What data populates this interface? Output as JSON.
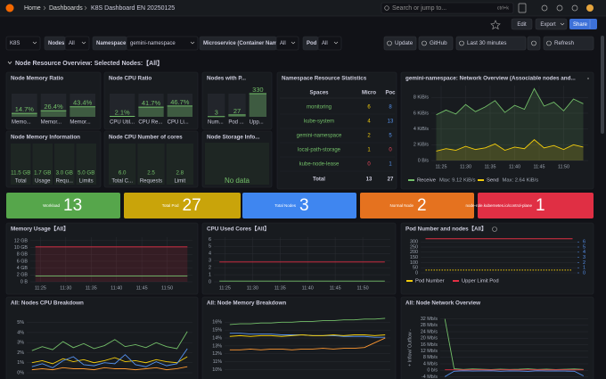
{
  "topbar": {
    "breadcrumb": [
      "Home",
      "Dashboards",
      "K8S Dashboard EN 20250125"
    ],
    "search": "Search or jump to...",
    "shortcut": "ctrl+k"
  },
  "toolbar": {
    "edit": "Edit",
    "export": "Export",
    "share": "Share"
  },
  "variables": {
    "datasource": "K8S",
    "nodes_label": "Nodes",
    "nodes": "All",
    "namespace_label": "Namespace",
    "namespace": "gemini-namespace",
    "microservice_label": "Microservice (Container Name)",
    "microservice": "All",
    "pod_label": "Pod",
    "pod": "All"
  },
  "actions": {
    "update": "Update",
    "github": "GitHub",
    "time_range": "Last 30 minutes",
    "refresh": "Refresh"
  },
  "row_title": "Node Resource Overview:  Selected Nodes:【All】",
  "panels": {
    "memory_ratio": {
      "title": "Node Memory Ratio",
      "max": 100,
      "items": [
        {
          "name": "Memo...",
          "value": 14.7,
          "label": "14.7%"
        },
        {
          "name": "Memor...",
          "value": 26.4,
          "label": "26.4%"
        },
        {
          "name": "Memor...",
          "value": 43.4,
          "label": "43.4%"
        }
      ]
    },
    "cpu_ratio": {
      "title": "Node CPU Ratio",
      "max": 100,
      "items": [
        {
          "name": "CPU Util...",
          "value": 2.1,
          "label": "2.1%"
        },
        {
          "name": "CPU Re...",
          "value": 41.7,
          "label": "41.7%"
        },
        {
          "name": "CPU Li...",
          "value": 46.7,
          "label": "46.7%"
        }
      ]
    },
    "pods": {
      "title": "Nodes with P...",
      "max": 330,
      "items": [
        {
          "name": "Num...",
          "value": 3
        },
        {
          "name": "Pod ...",
          "value": 27
        },
        {
          "name": "Upp...",
          "value": 330
        }
      ]
    },
    "memory_info": {
      "title": "Node Memory Information",
      "items": [
        {
          "name": "Total",
          "value": 11.5,
          "label": "11.5 GB"
        },
        {
          "name": "Usage",
          "value": 1.7,
          "label": "1.7 GB"
        },
        {
          "name": "Requ...",
          "value": 3.0,
          "label": "3.0 GB"
        },
        {
          "name": "Limits",
          "value": 5.0,
          "label": "5.0 GB"
        }
      ]
    },
    "cpu_cores": {
      "title": "Node CPU Number of cores",
      "items": [
        {
          "name": "Total C...",
          "value": 6.0,
          "label": "6.0"
        },
        {
          "name": "Requests",
          "value": 2.5,
          "label": "2.5"
        },
        {
          "name": "Limit",
          "value": 2.8,
          "label": "2.8"
        }
      ]
    },
    "storage": {
      "title": "Node Storage Info...",
      "message": "No data"
    },
    "namespace_table": {
      "title": "Namespace Resource Statistics",
      "columns": [
        "Spaces",
        "Micro",
        "Poc"
      ],
      "rows": [
        [
          "monitoring",
          6,
          8
        ],
        [
          "kube-system",
          4,
          13
        ],
        [
          "gemini-namespace",
          2,
          5
        ],
        [
          "local-path-storage",
          1,
          0
        ],
        [
          "kube-node-lease",
          0,
          1
        ]
      ],
      "total": [
        "Total",
        13,
        27
      ]
    }
  },
  "stats": [
    {
      "title": "Workload",
      "value": 13,
      "color": "#56a64b"
    },
    {
      "title": "Total Pod",
      "value": 27,
      "color": "#c9a40a"
    },
    {
      "title": "Total Nodes",
      "value": 3,
      "color": "#3f86f0"
    },
    {
      "title": "Normal Node",
      "value": 2,
      "color": "#e5721f"
    },
    {
      "title": "node-role.kubernetes.io/control-plane",
      "value": 1,
      "color": "#e02f44"
    }
  ],
  "charts": {
    "network": {
      "type": "line",
      "title": "gemini-namespace: Network Overview (Associable nodes and...",
      "x": [
        684,
        686,
        688,
        690,
        692,
        694,
        696,
        698,
        700,
        702,
        704,
        706,
        708,
        710,
        712,
        714
      ],
      "xlim": [
        683,
        715
      ],
      "xticks": [
        {
          "value": 685,
          "label": "11:25"
        },
        {
          "value": 690,
          "label": "11:30"
        },
        {
          "value": 695,
          "label": "11:35"
        },
        {
          "value": 700,
          "label": "11:40"
        },
        {
          "value": 705,
          "label": "11:45"
        },
        {
          "value": 710,
          "label": "11:50"
        }
      ],
      "ylim": [
        0,
        9.5
      ],
      "yticks": [
        {
          "value": 0,
          "label": "0 B/s"
        },
        {
          "value": 2,
          "label": "2 KiB/s"
        },
        {
          "value": 4,
          "label": "4 KiB/s"
        },
        {
          "value": 6,
          "label": "6 KiB/s"
        },
        {
          "value": 8,
          "label": "8 KiB/s"
        }
      ],
      "series": [
        {
          "name": "Receive",
          "color": "#73bf69",
          "area": true,
          "max": {
            "value": 9.12,
            "label": "Max: 9.12 KiB/s"
          },
          "values": [
            5.8,
            6.4,
            5.9,
            7.1,
            6.2,
            6.8,
            7.6,
            6.1,
            7.0,
            6.5,
            9.12,
            6.9,
            7.4,
            6.3,
            7.8,
            7.2
          ]
        },
        {
          "name": "Send",
          "color": "#f2cc0c",
          "area": true,
          "max": {
            "value": 2.64,
            "label": "Max: 2.64 KiB/s"
          },
          "values": [
            1.2,
            1.5,
            1.3,
            1.8,
            1.4,
            1.6,
            2.1,
            1.3,
            1.7,
            1.5,
            2.64,
            1.6,
            1.9,
            1.4,
            2.0,
            1.7
          ]
        }
      ]
    },
    "memory_usage": {
      "type": "line",
      "title": "Memory Usage【All】",
      "x": [
        684,
        686,
        688,
        690,
        692,
        694,
        696,
        698,
        700,
        702,
        704,
        706,
        708,
        710,
        712,
        714
      ],
      "xlim": [
        683,
        715
      ],
      "xticks": [
        {
          "value": 685,
          "label": "11:25"
        },
        {
          "value": 690,
          "label": "11:30"
        },
        {
          "value": 695,
          "label": "11:35"
        },
        {
          "value": 700,
          "label": "11:40"
        },
        {
          "value": 705,
          "label": "11:45"
        },
        {
          "value": 710,
          "label": "11:50"
        }
      ],
      "ylim": [
        0,
        13
      ],
      "yticks": [
        {
          "value": 0,
          "label": "0 B"
        },
        {
          "value": 2,
          "label": "2 GB"
        },
        {
          "value": 4,
          "label": "4 GB"
        },
        {
          "value": 6,
          "label": "6 GB"
        },
        {
          "value": 8,
          "label": "8 GB"
        },
        {
          "value": 10,
          "label": "10 GB"
        },
        {
          "value": 12,
          "label": "12 GB"
        }
      ],
      "series": [
        {
          "color": "#e02f44",
          "area": true,
          "values": [
            10.2,
            10.2,
            10.2,
            10.2,
            10.2,
            10.2,
            10.2,
            10.2,
            10.2,
            10.2,
            10.2,
            10.2,
            10.2,
            10.2,
            10.2,
            10.2
          ]
        },
        {
          "color": "#73bf69",
          "values": [
            1.7,
            1.7,
            1.7,
            1.7,
            1.7,
            1.7,
            1.7,
            1.7,
            1.7,
            1.7,
            1.7,
            1.7,
            1.7,
            1.7,
            1.7,
            1.7
          ]
        }
      ]
    },
    "cpu_used": {
      "type": "line",
      "title": "CPU Used Cores【All】",
      "x": [
        684,
        686,
        688,
        690,
        692,
        694,
        696,
        698,
        700,
        702,
        704,
        706,
        708,
        710,
        712,
        714
      ],
      "xlim": [
        683,
        715
      ],
      "xticks": [
        {
          "value": 685,
          "label": "11:25"
        },
        {
          "value": 690,
          "label": "11:30"
        },
        {
          "value": 695,
          "label": "11:35"
        },
        {
          "value": 700,
          "label": "11:40"
        },
        {
          "value": 705,
          "label": "11:45"
        },
        {
          "value": 710,
          "label": "11:50"
        }
      ],
      "ylim": [
        0,
        6.3
      ],
      "yticks": [
        0,
        1,
        2,
        3,
        4,
        5,
        6
      ],
      "series": [
        {
          "color": "#e02f44",
          "values": [
            2.8,
            2.8,
            2.8,
            2.8,
            2.8,
            2.8,
            2.8,
            2.8,
            2.8,
            2.8,
            2.8,
            2.8,
            2.8,
            2.8,
            2.8,
            2.8
          ]
        },
        {
          "color": "#73bf69",
          "values": [
            0.1,
            0.1,
            0.1,
            0.1,
            0.1,
            0.1,
            0.1,
            0.1,
            0.1,
            0.1,
            0.1,
            0.1,
            0.1,
            0.1,
            0.1,
            0.1
          ]
        }
      ]
    },
    "pod_nodes": {
      "type": "line",
      "title": "Pod Number and nodes【All】",
      "x": [
        684,
        686,
        688,
        690,
        692,
        694,
        696,
        698,
        700,
        702,
        704,
        706,
        708,
        710,
        712,
        714
      ],
      "xlim": [
        683,
        715
      ],
      "ylim": [
        0,
        345
      ],
      "yticks": [
        0,
        50,
        100,
        150,
        200,
        250,
        300
      ],
      "y2lim": [
        0,
        6.9
      ],
      "y2ticks": [
        0,
        1,
        2,
        3,
        4,
        5,
        6
      ],
      "series": [
        {
          "name": "Pod Number",
          "color": "#f2cc0c",
          "dash": true,
          "values": [
            27,
            27,
            27,
            27,
            27,
            27,
            27,
            27,
            27,
            27,
            27,
            27,
            27,
            27,
            27,
            27
          ]
        },
        {
          "name": "Upper Limit Pod",
          "color": "#e02f44",
          "values": [
            330,
            330,
            330,
            330,
            330,
            330,
            330,
            330,
            330,
            330,
            330,
            330,
            330,
            330,
            330,
            330
          ]
        }
      ]
    },
    "cpu_breakdown": {
      "type": "line",
      "title": "All:  Nodes CPU Breakdown",
      "x": [
        684,
        686,
        688,
        690,
        692,
        694,
        696,
        698,
        700,
        702,
        704,
        706,
        708,
        710,
        712,
        714
      ],
      "xlim": [
        683,
        715
      ],
      "ylim": [
        0,
        5.5
      ],
      "yticks": [
        {
          "value": 0,
          "label": "0%"
        },
        {
          "value": 1,
          "label": "1%"
        },
        {
          "value": 2,
          "label": "2%"
        },
        {
          "value": 3,
          "label": "3%"
        },
        {
          "value": 4,
          "label": "4%"
        },
        {
          "value": 5,
          "label": "5%"
        }
      ],
      "series": [
        {
          "color": "#73bf69",
          "values": [
            2.2,
            2.6,
            2.3,
            3.1,
            2.5,
            2.9,
            2.4,
            2.7,
            3.3,
            2.6,
            2.8,
            2.5,
            3.0,
            2.6,
            2.4,
            4.1
          ]
        },
        {
          "color": "#f2cc0c",
          "values": [
            1.0,
            1.2,
            0.9,
            1.4,
            1.1,
            1.3,
            1.0,
            1.2,
            1.5,
            1.1,
            1.2,
            1.0,
            1.3,
            1.1,
            1.0,
            1.6
          ]
        },
        {
          "color": "#5794f2",
          "values": [
            0.6,
            0.9,
            0.5,
            1.2,
            1.6,
            0.8,
            0.7,
            1.0,
            0.9,
            1.8,
            0.8,
            0.6,
            1.1,
            0.7,
            0.9,
            2.4
          ]
        },
        {
          "color": "#ff9830",
          "values": [
            0.3,
            0.4,
            0.3,
            0.5,
            0.4,
            0.4,
            0.3,
            0.5,
            0.4,
            0.4,
            0.3,
            0.4,
            0.5,
            0.3,
            0.4,
            0.6
          ]
        }
      ]
    },
    "memory_breakdown": {
      "type": "line",
      "title": "All:  Node Memory Breakdown",
      "x": [
        684,
        686,
        688,
        690,
        692,
        694,
        696,
        698,
        700,
        702,
        704,
        706,
        708,
        710,
        712,
        714
      ],
      "xlim": [
        683,
        715
      ],
      "ylim": [
        9.6,
        16.6
      ],
      "yticks": [
        {
          "value": 10,
          "label": "10%"
        },
        {
          "value": 11,
          "label": "11%"
        },
        {
          "value": 12,
          "label": "12%"
        },
        {
          "value": 13,
          "label": "13%"
        },
        {
          "value": 14,
          "label": "14%"
        },
        {
          "value": 15,
          "label": "15%"
        },
        {
          "value": 16,
          "label": "16%"
        }
      ],
      "series": [
        {
          "color": "#73bf69",
          "values": [
            15.7,
            15.8,
            15.8,
            15.9,
            15.9,
            16.0,
            16.0,
            16.1,
            16.1,
            16.2,
            16.2,
            16.3,
            16.3,
            16.4,
            16.4,
            16.5
          ]
        },
        {
          "color": "#5794f2",
          "values": [
            14.6,
            14.6,
            14.5,
            14.5,
            14.5,
            14.4,
            14.4,
            14.4,
            14.3,
            14.3,
            14.3,
            14.2,
            14.2,
            14.2,
            14.1,
            14.1
          ]
        },
        {
          "color": "#f2cc0c",
          "values": [
            14.2,
            14.3,
            14.2,
            14.3,
            14.3,
            14.2,
            14.3,
            14.4,
            14.3,
            14.3,
            14.4,
            14.3,
            14.4,
            14.4,
            14.3,
            14.4
          ]
        },
        {
          "color": "#ff9830",
          "values": [
            12.5,
            12.5,
            12.6,
            12.5,
            12.6,
            12.6,
            12.5,
            12.6,
            12.6,
            12.7,
            12.6,
            12.7,
            12.7,
            12.8,
            13.4,
            14.0
          ]
        }
      ]
    },
    "network_overview": {
      "type": "line",
      "title": "All:  Node Network Overview",
      "ylabel": "+ Inflow/ Outflow -",
      "x": [
        684,
        686,
        688,
        690,
        692,
        694,
        696,
        698,
        700,
        702,
        704,
        706,
        708,
        710,
        712,
        714
      ],
      "xlim": [
        683,
        715
      ],
      "ylim": [
        -6,
        34
      ],
      "yticks": [
        {
          "value": 32,
          "label": "32 Mb/s"
        },
        {
          "value": 28,
          "label": "28 Mb/s"
        },
        {
          "value": 24,
          "label": "24 Mb/s"
        },
        {
          "value": 20,
          "label": "20 Mb/s"
        },
        {
          "value": 16,
          "label": "16 Mb/s"
        },
        {
          "value": 12,
          "label": "12 Mb/s"
        },
        {
          "value": 8,
          "label": "8 Mb/s"
        },
        {
          "value": 4,
          "label": "4 Mb/s"
        },
        {
          "value": 0,
          "label": "0 b/s"
        },
        {
          "value": -4,
          "label": "-4 Mb/s"
        }
      ],
      "series": [
        {
          "color": "#73bf69",
          "values": [
            32,
            1.0,
            0.5,
            0.8,
            0.6,
            0.4,
            0.7,
            0.5,
            0.6,
            0.9,
            0.5,
            0.7,
            0.4,
            0.6,
            0.8,
            0.5
          ]
        },
        {
          "color": "#5794f2",
          "values": [
            -4,
            -0.6,
            -0.3,
            -0.5,
            -0.4,
            -0.3,
            -0.6,
            -0.4,
            -0.5,
            -0.7,
            -0.3,
            -0.5,
            -0.4,
            -0.5,
            -0.6,
            -3.5
          ]
        },
        {
          "color": "#e02f44",
          "values": [
            0.3,
            0.3,
            0.2,
            0.3,
            0.3,
            0.2,
            0.3,
            0.3,
            0.2,
            0.3,
            0.3,
            0.2,
            0.3,
            0.3,
            0.2,
            0.3
          ]
        }
      ]
    }
  }
}
